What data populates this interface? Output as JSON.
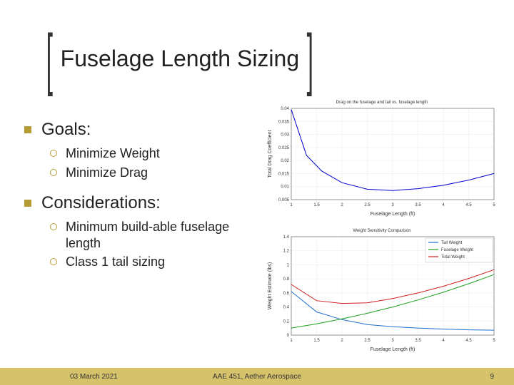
{
  "title": "Fuselage Length Sizing",
  "sections": [
    {
      "heading": "Goals:",
      "items": [
        "Minimize Weight",
        "Minimize Drag"
      ]
    },
    {
      "heading": "Considerations:",
      "items": [
        "Minimum build-able fuselage length",
        "Class 1 tail sizing"
      ]
    }
  ],
  "footer": {
    "date": "03 March 2021",
    "center": "AAE 451, Aether Aerospace",
    "page": "9"
  },
  "chart1": {
    "type": "line",
    "title": "Drag on the fuselage and tail vs. fuselage length",
    "xlabel": "Fuselage Length (ft)",
    "ylabel": "Total Drag Coefficient",
    "xlim": [
      1,
      5
    ],
    "ylim": [
      0.005,
      0.04
    ],
    "xticks": [
      1,
      1.5,
      2,
      2.5,
      3,
      3.5,
      4,
      4.5,
      5
    ],
    "yticks": [
      0.005,
      0.01,
      0.015,
      0.02,
      0.025,
      0.03,
      0.035,
      0.04
    ],
    "series": {
      "x": [
        1,
        1.3,
        1.6,
        2,
        2.5,
        3,
        3.5,
        4,
        4.5,
        5
      ],
      "y": [
        0.0395,
        0.022,
        0.016,
        0.0115,
        0.009,
        0.0085,
        0.0092,
        0.0105,
        0.0125,
        0.015
      ],
      "color": "#0000cc",
      "width": 1
    },
    "grid_color": "#cccccc",
    "background_color": "#ffffff"
  },
  "chart2": {
    "type": "line",
    "title": "Weight Sensitivity Comparison",
    "xlabel": "Fuselage Length (ft)",
    "ylabel": "Weight Estimate (lbs)",
    "xlim": [
      1,
      5
    ],
    "ylim": [
      0,
      1.4
    ],
    "xticks": [
      1,
      1.5,
      2,
      2.5,
      3,
      3.5,
      4,
      4.5,
      5
    ],
    "yticks": [
      0,
      0.2,
      0.4,
      0.6,
      0.8,
      1,
      1.2,
      1.4
    ],
    "legend": {
      "items": [
        "Tail Weight",
        "Fuselage Weight",
        "Total Weight"
      ],
      "colors": [
        "#1f6fd0",
        "#1aa01a",
        "#d01f1f"
      ]
    },
    "series": [
      {
        "name": "Tail Weight",
        "color": "#1f6fd0",
        "width": 1,
        "x": [
          1,
          1.5,
          2,
          2.5,
          3,
          3.5,
          4,
          4.5,
          5
        ],
        "y": [
          0.62,
          0.33,
          0.22,
          0.15,
          0.12,
          0.1,
          0.085,
          0.075,
          0.07
        ]
      },
      {
        "name": "Fuselage Weight",
        "color": "#1aa01a",
        "width": 1,
        "x": [
          1,
          1.5,
          2,
          2.5,
          3,
          3.5,
          4,
          4.5,
          5
        ],
        "y": [
          0.1,
          0.16,
          0.23,
          0.31,
          0.4,
          0.5,
          0.61,
          0.73,
          0.86
        ]
      },
      {
        "name": "Total Weight",
        "color": "#d01f1f",
        "width": 1,
        "x": [
          1,
          1.5,
          2,
          2.5,
          3,
          3.5,
          4,
          4.5,
          5
        ],
        "y": [
          0.72,
          0.49,
          0.45,
          0.46,
          0.52,
          0.6,
          0.695,
          0.805,
          0.93
        ]
      }
    ],
    "grid_color": "#cccccc",
    "background_color": "#ffffff"
  },
  "bracket_color": "#323232",
  "accent_color": "#b59b34",
  "footer_bg": "#d6c26a"
}
